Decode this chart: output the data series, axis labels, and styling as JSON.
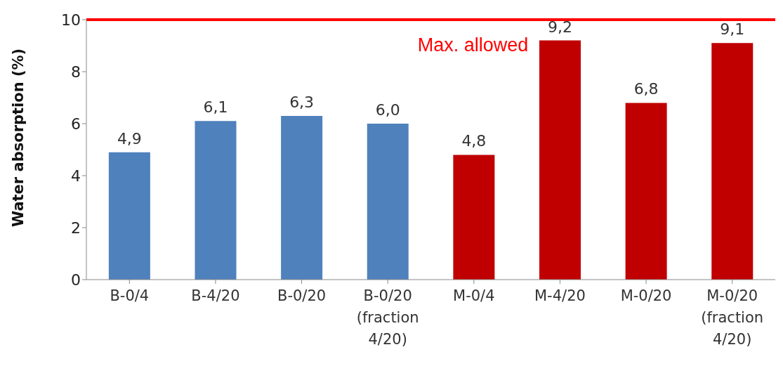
{
  "chart_data": {
    "type": "bar",
    "ylabel": "Water absorption (%)",
    "categories": [
      "B-0/4",
      "B-4/20",
      "B-0/20",
      "B-0/20 (fraction 4/20)",
      "M-0/4",
      "M-4/20",
      "M-0/20",
      "M-0/20 (fraction 4/20)"
    ],
    "values": [
      4.9,
      6.1,
      6.3,
      6.0,
      4.8,
      9.2,
      6.8,
      9.1
    ],
    "colors": [
      "#4f81bd",
      "#4f81bd",
      "#4f81bd",
      "#4f81bd",
      "#c00000",
      "#c00000",
      "#c00000",
      "#c00000"
    ],
    "value_labels": [
      "4,9",
      "6,1",
      "6,3",
      "6,0",
      "4,8",
      "9,2",
      "6,8",
      "9,1"
    ],
    "ylim": [
      0,
      10
    ],
    "yticks": [
      0,
      2,
      4,
      6,
      8,
      10
    ],
    "grid": false,
    "legend": false,
    "ref_lines": [
      {
        "axis": "y",
        "value": 10,
        "label": "Max. allowed",
        "color": "#ff0000"
      }
    ]
  }
}
